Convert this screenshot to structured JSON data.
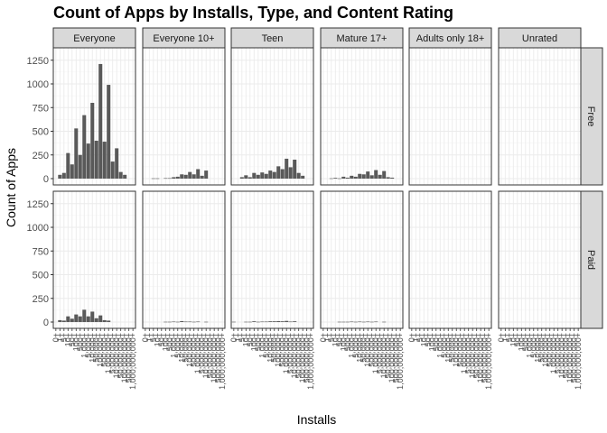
{
  "chart_data": {
    "type": "bar",
    "title": "Count of Apps by Installs, Type, and Content Rating",
    "xlabel": "Installs",
    "ylabel": "Count of Apps",
    "ylim": [
      0,
      1300
    ],
    "yticks": [
      0,
      250,
      500,
      750,
      1000,
      1250
    ],
    "grid": true,
    "legend": "none",
    "bar_color": "#595959",
    "columns": [
      "Everyone",
      "Everyone 10+",
      "Teen",
      "Mature 17+",
      "Adults only 18+",
      "Unrated"
    ],
    "rows": [
      "Free",
      "Paid"
    ],
    "categories": [
      "0+",
      "1+",
      "5+",
      "10+",
      "50+",
      "100+",
      "500+",
      "1,000+",
      "5,000+",
      "10,000+",
      "50,000+",
      "100,000+",
      "500,000+",
      "1,000,000+",
      "5,000,000+",
      "10,000,000+",
      "50,000,000+",
      "100,000,000+",
      "500,000,000+",
      "1,000,000,000+"
    ],
    "panels": [
      {
        "column": "Everyone",
        "row": "Free",
        "values": [
          0,
          40,
          60,
          270,
          150,
          530,
          250,
          670,
          370,
          800,
          400,
          1210,
          390,
          990,
          180,
          320,
          70,
          40,
          0,
          0
        ]
      },
      {
        "column": "Everyone 10+",
        "row": "Free",
        "values": [
          0,
          0,
          3,
          3,
          0,
          5,
          5,
          15,
          20,
          45,
          40,
          70,
          45,
          100,
          30,
          85,
          0,
          0,
          0,
          0
        ]
      },
      {
        "column": "Teen",
        "row": "Free",
        "values": [
          0,
          0,
          15,
          35,
          15,
          60,
          40,
          65,
          50,
          85,
          70,
          130,
          100,
          210,
          120,
          200,
          60,
          30,
          0,
          0
        ]
      },
      {
        "column": "Mature 17+",
        "row": "Free",
        "values": [
          0,
          0,
          3,
          8,
          3,
          20,
          10,
          30,
          20,
          50,
          45,
          75,
          35,
          90,
          40,
          80,
          15,
          10,
          0,
          0
        ]
      },
      {
        "column": "Adults only 18+",
        "row": "Free",
        "values": [
          0,
          0,
          0,
          0,
          0,
          0,
          0,
          0,
          0,
          0,
          0,
          0,
          0,
          0,
          0,
          0,
          0,
          0,
          0,
          0
        ]
      },
      {
        "column": "Unrated",
        "row": "Free",
        "values": [
          0,
          0,
          0,
          0,
          0,
          0,
          0,
          0,
          0,
          0,
          0,
          0,
          0,
          0,
          0,
          0,
          0,
          0,
          0,
          0
        ]
      },
      {
        "column": "Everyone",
        "row": "Paid",
        "values": [
          0,
          20,
          15,
          60,
          35,
          80,
          60,
          130,
          60,
          110,
          40,
          70,
          20,
          15,
          0,
          0,
          0,
          0,
          0,
          0
        ]
      },
      {
        "column": "Everyone 10+",
        "row": "Paid",
        "values": [
          0,
          0,
          0,
          0,
          0,
          3,
          3,
          5,
          3,
          10,
          5,
          5,
          3,
          5,
          0,
          3,
          0,
          0,
          0,
          0
        ]
      },
      {
        "column": "Teen",
        "row": "Paid",
        "values": [
          3,
          0,
          0,
          3,
          3,
          8,
          3,
          5,
          5,
          8,
          8,
          10,
          8,
          12,
          5,
          8,
          0,
          0,
          0,
          0
        ]
      },
      {
        "column": "Mature 17+",
        "row": "Paid",
        "values": [
          0,
          0,
          0,
          0,
          3,
          3,
          3,
          5,
          3,
          5,
          3,
          5,
          3,
          5,
          0,
          3,
          0,
          0,
          0,
          0
        ]
      },
      {
        "column": "Adults only 18+",
        "row": "Paid",
        "values": [
          0,
          0,
          0,
          0,
          0,
          0,
          0,
          0,
          0,
          0,
          0,
          0,
          0,
          0,
          0,
          0,
          0,
          0,
          0,
          0
        ]
      },
      {
        "column": "Unrated",
        "row": "Paid",
        "values": [
          0,
          0,
          0,
          0,
          0,
          0,
          0,
          0,
          0,
          0,
          0,
          0,
          0,
          0,
          0,
          0,
          0,
          0,
          0,
          0
        ]
      }
    ]
  }
}
